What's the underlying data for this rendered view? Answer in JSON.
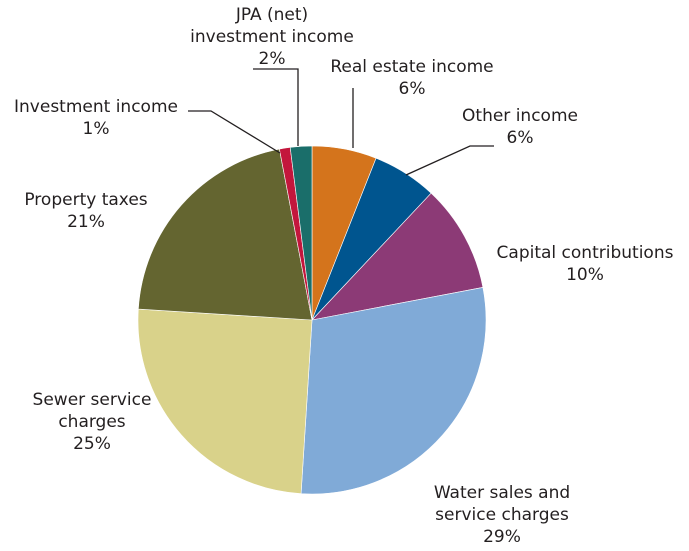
{
  "chart_data": {
    "type": "pie",
    "title": "",
    "start_angle_deg": 0,
    "direction": "clockwise",
    "slices": [
      {
        "name_lines": [
          "Real estate income"
        ],
        "pct_label": "6%",
        "value": 6,
        "color": "#d4741c"
      },
      {
        "name_lines": [
          "Other income"
        ],
        "pct_label": "6%",
        "value": 6,
        "color": "#00558f"
      },
      {
        "name_lines": [
          "Capital contributions"
        ],
        "pct_label": "10%",
        "value": 10,
        "color": "#8c3a76"
      },
      {
        "name_lines": [
          "Water sales and",
          "service charges"
        ],
        "pct_label": "29%",
        "value": 29,
        "color": "#80aad7"
      },
      {
        "name_lines": [
          "Sewer service",
          "charges"
        ],
        "pct_label": "25%",
        "value": 25,
        "color": "#d9d28a"
      },
      {
        "name_lines": [
          "Property taxes"
        ],
        "pct_label": "21%",
        "value": 21,
        "color": "#646530"
      },
      {
        "name_lines": [
          "Investment income"
        ],
        "pct_label": "1%",
        "value": 1,
        "color": "#c3163c"
      },
      {
        "name_lines": [
          "JPA (net)",
          "investment income"
        ],
        "pct_label": "2%",
        "value": 2,
        "color": "#1a6e6a"
      }
    ]
  }
}
